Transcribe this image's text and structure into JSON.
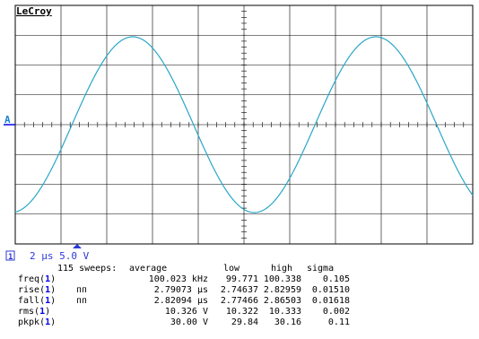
{
  "brand": "LeCroy",
  "channel_marker": "A",
  "channel_badge": "1",
  "timebase": "2 µs 5.0 V",
  "colors": {
    "trace": "#2aa7c7",
    "grid": "#000000",
    "channel_highlight": "#0000ee",
    "marker": "#f0a020"
  },
  "icons": {
    "slope_icon": "ᴨᴨ"
  },
  "measurements": {
    "header": {
      "sweeps": "115 sweeps:",
      "average": "average",
      "low": "low",
      "high": "high",
      "sigma": "sigma"
    },
    "rows": [
      {
        "name": "freq(",
        "ch": "1",
        "close": ")",
        "icon": "",
        "average": "100.023 kHz",
        "low": "99.771",
        "high": "100.338",
        "sigma": "0.105"
      },
      {
        "name": "rise(",
        "ch": "1",
        "close": ")",
        "icon": "ᴨᴨ",
        "average": "2.79073 µs",
        "low": "2.74637",
        "high": "2.82959",
        "sigma": "0.01510"
      },
      {
        "name": "fall(",
        "ch": "1",
        "close": ")",
        "icon": "ᴨᴨ",
        "average": "2.82094 µs",
        "low": "2.77466",
        "high": "2.86503",
        "sigma": "0.01618"
      },
      {
        "name": "rms(",
        "ch": "1",
        "close": ")",
        "icon": "",
        "average": "10.326 V",
        "low": "10.322",
        "high": "10.333",
        "sigma": "0.002"
      },
      {
        "name": "pkpk(",
        "ch": "1",
        "close": ")",
        "icon": "",
        "average": "30.00 V",
        "low": "29.84",
        "high": "30.16",
        "sigma": "0.11"
      }
    ]
  }
}
